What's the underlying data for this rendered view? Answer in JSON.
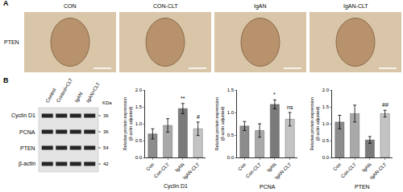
{
  "panel_a": {
    "label": "A",
    "row_label": "PTEN",
    "columns": [
      "CON",
      "CON-CLT",
      "IgAN",
      "IgAN-CLT"
    ]
  },
  "panel_b": {
    "label": "B",
    "blot": {
      "lanes": [
        "Control",
        "Control+CLT",
        "IgAN",
        "IgAN+CLT"
      ],
      "unit": "KDa",
      "rows": [
        {
          "name": "Cyclin D1",
          "kda": 36
        },
        {
          "name": "PCNA",
          "kda": 36
        },
        {
          "name": "PTEN",
          "kda": 54
        },
        {
          "name": "β-actin",
          "kda": 42
        }
      ]
    }
  },
  "chart_data": [
    {
      "type": "bar",
      "xlabel": "Cyclin D1",
      "ylabel": [
        "Relative protein expression",
        "(β-actin adjusted)"
      ],
      "categories": [
        "Con",
        "Con-CLT",
        "IgAN",
        "IgAN-CLT"
      ],
      "values": [
        0.7,
        0.95,
        1.45,
        0.85
      ],
      "errors": [
        0.15,
        0.2,
        0.15,
        0.2
      ],
      "colors": [
        "#8c8c8c",
        "#a9a9a9",
        "#7a7a7a",
        "#c4c4c4"
      ],
      "ylim": [
        0,
        2
      ],
      "yticks": [
        {
          "value": 0,
          "label": "0.0"
        },
        0.5,
        {
          "value": 1,
          "label": "1.0"
        },
        1.5,
        {
          "value": 2,
          "label": "2.0"
        }
      ],
      "annotations": [
        {
          "category": "IgAN",
          "text": "**"
        },
        {
          "category": "IgAN-CLT",
          "text": "#"
        }
      ]
    },
    {
      "type": "bar",
      "xlabel": "PCNA",
      "ylabel": [
        "Relative protein expression",
        "(β-actin adjusted)"
      ],
      "categories": [
        "Con",
        "Con-CLT",
        "IgAN",
        "IgAN-CLT"
      ],
      "values": [
        0.7,
        0.6,
        1.18,
        0.85
      ],
      "errors": [
        0.1,
        0.15,
        0.1,
        0.15
      ],
      "colors": [
        "#8c8c8c",
        "#a9a9a9",
        "#7a7a7a",
        "#c4c4c4"
      ],
      "ylim": [
        0,
        1.5
      ],
      "yticks": [
        {
          "value": 0,
          "label": "0.0"
        },
        0.5,
        {
          "value": 1,
          "label": "1.0"
        },
        1.5
      ],
      "annotations": [
        {
          "category": "IgAN",
          "text": "*"
        },
        {
          "category": "IgAN-CLT",
          "text": "ns"
        }
      ]
    },
    {
      "type": "bar",
      "xlabel": "PTEN",
      "ylabel": [
        "Relative protein expression",
        "(β-actin adjusted)"
      ],
      "categories": [
        "Con",
        "Con-CLT",
        "IgAN",
        "IgAN-CLT"
      ],
      "values": [
        1.05,
        1.3,
        0.52,
        1.3
      ],
      "errors": [
        0.2,
        0.25,
        0.1,
        0.1
      ],
      "colors": [
        "#8c8c8c",
        "#a9a9a9",
        "#7a7a7a",
        "#c4c4c4"
      ],
      "ylim": [
        0,
        2
      ],
      "yticks": [
        {
          "value": 0,
          "label": "0.0"
        },
        0.5,
        {
          "value": 1,
          "label": "1.0"
        },
        1.5,
        {
          "value": 2,
          "label": "2.0"
        }
      ],
      "annotations": [
        {
          "category": "IgAN-CLT",
          "text": "##"
        }
      ]
    }
  ]
}
